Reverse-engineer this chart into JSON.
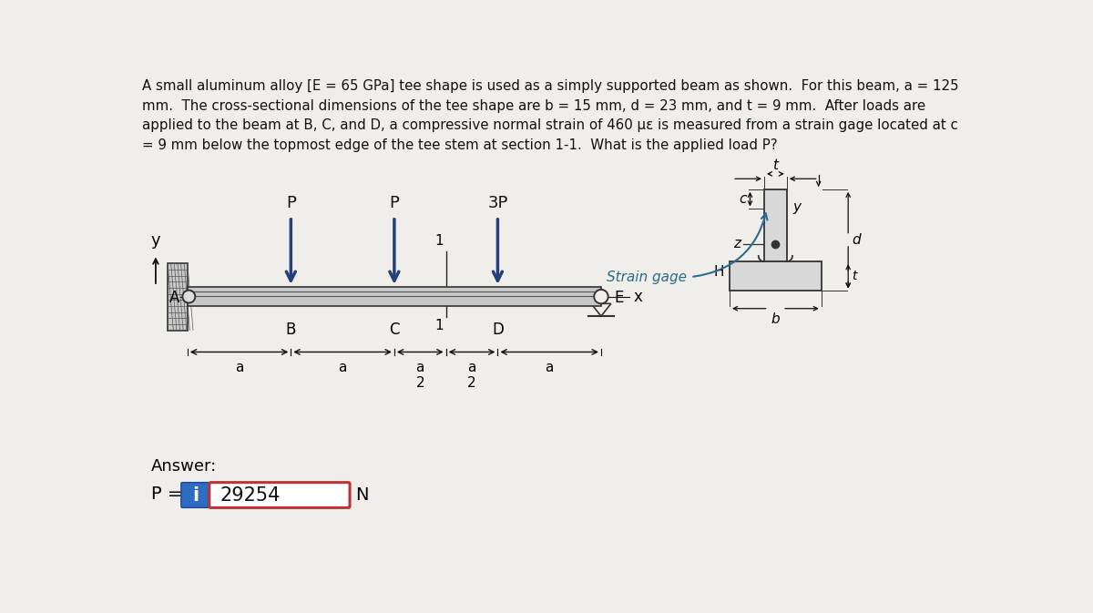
{
  "title_text": "A small aluminum alloy [E = 65 GPa] tee shape is used as a simply supported beam as shown.  For this beam, a = 125\nmm.  The cross-sectional dimensions of the tee shape are b = 15 mm, d = 23 mm, and t = 9 mm.  After loads are\napplied to the beam at B, C, and D, a compressive normal strain of 460 με is measured from a strain gage located at c\n= 9 mm below the topmost edge of the tee stem at section 1-1.  What is the applied load P?",
  "bg_color": "#f0eeea",
  "beam_fill": "#b0b0b0",
  "beam_edge": "#222222",
  "arrow_color": "#253f7a",
  "answer_value": "29254",
  "answer_label": "P =",
  "answer_unit": "N",
  "answer_prefix": "Answer:"
}
